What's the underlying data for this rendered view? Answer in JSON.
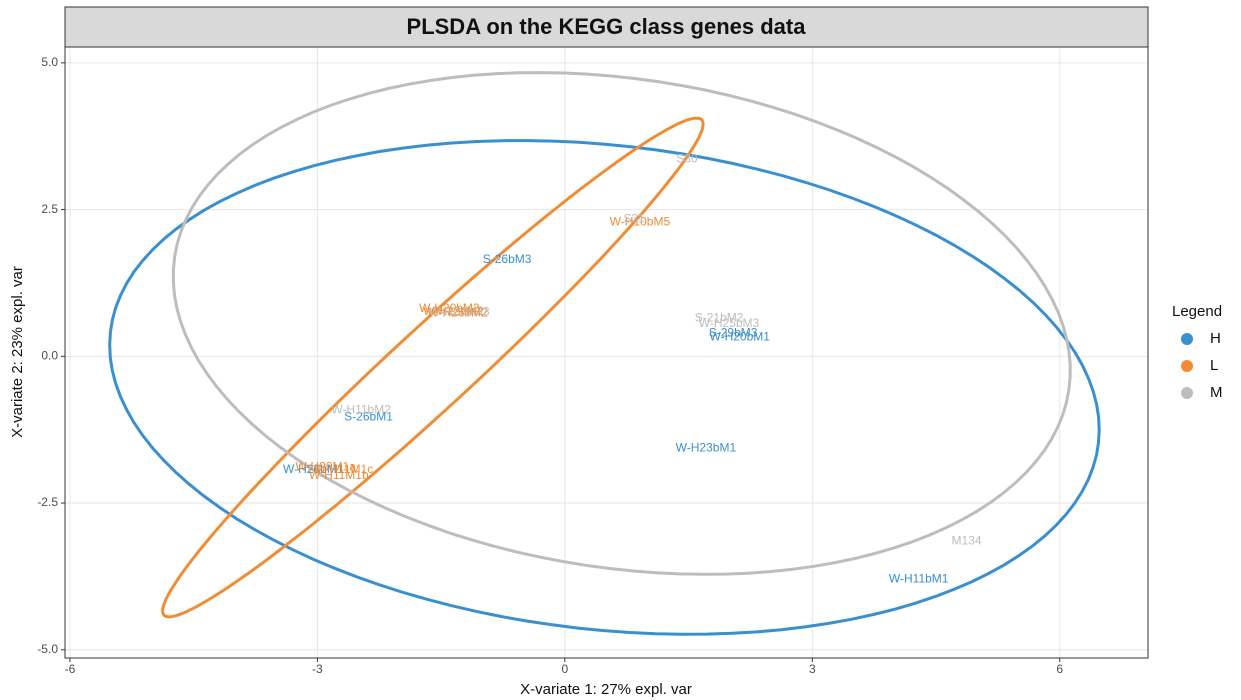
{
  "chart_data": {
    "type": "scatter",
    "title": "PLSDA on the KEGG class genes data",
    "x_label": "X-variate 1: 27% expl. var",
    "y_label": "X-variate 2: 23% expl. var",
    "legend_title": "Legend",
    "legend_position": "right",
    "grid": true,
    "xlim": [
      -6.06,
      7.07
    ],
    "ylim": [
      -5.14,
      5.27
    ],
    "xticks": [
      -6,
      -3,
      0,
      3,
      6
    ],
    "yticks": [
      {
        "value": 5,
        "label": "5.0"
      },
      2.5,
      {
        "value": 0,
        "label": "0.0"
      },
      -2.5,
      {
        "value": -5,
        "label": "-5.0"
      }
    ],
    "series": [
      {
        "name": "H",
        "color": "#3a8fcf",
        "labels": [
          "S-26bM3",
          "S-26bM1",
          "W-H23bM1",
          "W-H11bM1",
          "W-H20bM1",
          "S-29bM3",
          "W-H26bM1"
        ],
        "x": [
          -0.7,
          -2.38,
          1.71,
          4.29,
          2.12,
          2.04,
          -3.05
        ],
        "y": [
          1.64,
          -1.04,
          -1.57,
          -3.8,
          0.32,
          0.39,
          -1.93
        ]
      },
      {
        "name": "L",
        "color": "#f08c35",
        "labels": [
          "W-H10bM5",
          "W-H20bM2",
          "W-H23bM2",
          "W-H25bM2",
          "W-H11M1b",
          "W-H11M1c",
          "W-H20M1a"
        ],
        "x": [
          0.91,
          -1.4,
          -1.35,
          -1.3,
          -2.74,
          -2.68,
          -2.9
        ],
        "y": [
          2.28,
          0.81,
          0.76,
          0.73,
          -2.04,
          -1.93,
          -1.89
        ]
      },
      {
        "name": "M",
        "color": "#bdbdbd",
        "labels": [
          "S30",
          "S31",
          "S-21bM2",
          "W-H25bM3",
          "W-H11bM2",
          "M134",
          "W-H23bM3"
        ],
        "x": [
          1.48,
          0.84,
          1.87,
          1.99,
          -2.47,
          4.87,
          -1.28
        ],
        "y": [
          3.36,
          2.33,
          0.65,
          0.55,
          -0.92,
          -3.15,
          0.75
        ]
      }
    ],
    "ellipses": [
      {
        "name": "H",
        "center": [
          0.48,
          -0.53
        ],
        "major": [
          5.99,
          -0.94
        ],
        "minor": [
          -0.32,
          -4.1
        ]
      },
      {
        "name": "L",
        "center": [
          -1.6,
          -0.19
        ],
        "major": [
          3.26,
          4.22
        ],
        "minor": [
          0.33,
          -0.5
        ]
      },
      {
        "name": "M",
        "center": [
          0.69,
          0.56
        ],
        "major": [
          5.42,
          -1.14
        ],
        "minor": [
          -0.44,
          -4.12
        ]
      }
    ]
  }
}
